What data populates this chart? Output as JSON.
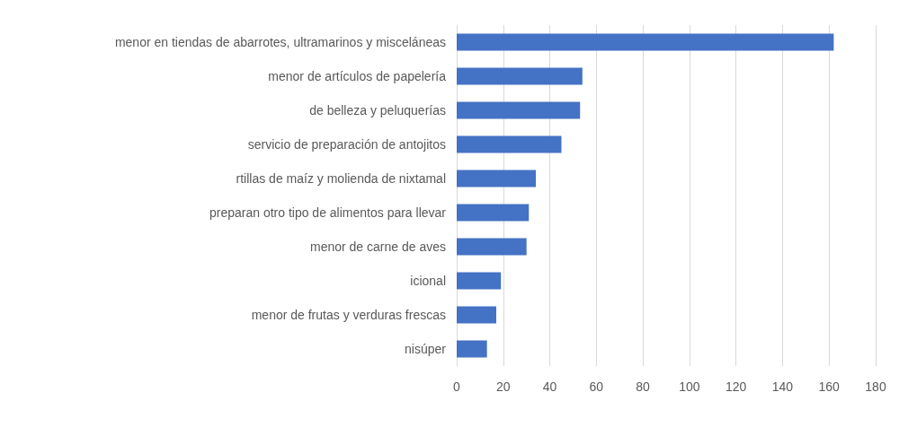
{
  "chart_data": {
    "type": "bar",
    "orientation": "horizontal",
    "categories": [
      "menor en tiendas de abarrotes, ultramarinos y misceláneas",
      "menor de artículos de papelería",
      "de belleza y peluquerías",
      "servicio de preparación de antojitos",
      "rtillas de maíz y molienda de nixtamal",
      "preparan otro tipo de alimentos para llevar",
      "menor de carne de aves",
      "icional",
      "menor de frutas y verduras frescas",
      "nisúper"
    ],
    "values": [
      162,
      54,
      53,
      45,
      34,
      31,
      30,
      19,
      17,
      13
    ],
    "color": "#4472c4",
    "xlim": [
      0,
      180
    ],
    "xticks": [
      0,
      20,
      40,
      60,
      80,
      100,
      120,
      140,
      160,
      180
    ],
    "grid": "x"
  }
}
